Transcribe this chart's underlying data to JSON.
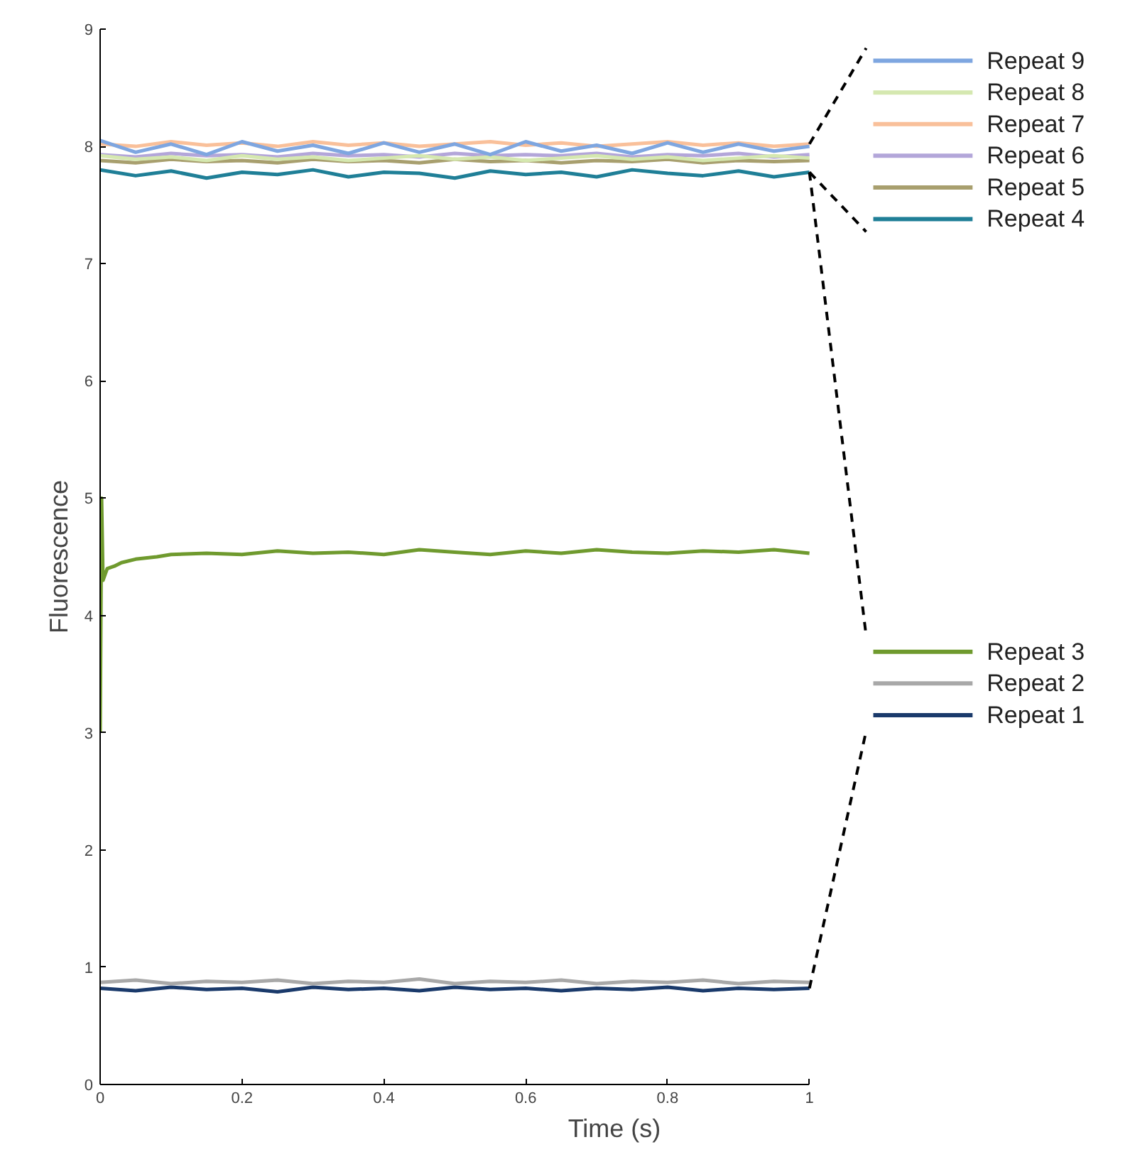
{
  "chart_data": {
    "type": "line",
    "xlabel": "Time (s)",
    "ylabel": "Fluorescence",
    "x": [
      0,
      0.05,
      0.1,
      0.15,
      0.2,
      0.25,
      0.3,
      0.35,
      0.4,
      0.45,
      0.5,
      0.55,
      0.6,
      0.65,
      0.7,
      0.75,
      0.8,
      0.85,
      0.9,
      0.95,
      1
    ],
    "series": [
      {
        "name": "Repeat 1",
        "color": "#1a3a6b",
        "values": [
          0.82,
          0.8,
          0.83,
          0.81,
          0.82,
          0.79,
          0.83,
          0.81,
          0.82,
          0.8,
          0.83,
          0.81,
          0.82,
          0.8,
          0.82,
          0.81,
          0.83,
          0.8,
          0.82,
          0.81,
          0.82
        ]
      },
      {
        "name": "Repeat 2",
        "color": "#a8a8a8",
        "values": [
          0.87,
          0.89,
          0.86,
          0.88,
          0.87,
          0.89,
          0.86,
          0.88,
          0.87,
          0.9,
          0.86,
          0.88,
          0.87,
          0.89,
          0.86,
          0.88,
          0.87,
          0.89,
          0.86,
          0.88,
          0.87
        ]
      },
      {
        "name": "Repeat 3",
        "color": "#6f9a2e",
        "x": [
          0,
          0.002,
          0.004,
          0.01,
          0.02,
          0.03,
          0.05,
          0.08,
          0.1,
          0.15,
          0.2,
          0.25,
          0.3,
          0.35,
          0.4,
          0.45,
          0.5,
          0.55,
          0.6,
          0.65,
          0.7,
          0.75,
          0.8,
          0.85,
          0.9,
          0.95,
          1
        ],
        "values": [
          3.0,
          5.0,
          4.3,
          4.4,
          4.42,
          4.45,
          4.48,
          4.5,
          4.52,
          4.53,
          4.52,
          4.55,
          4.53,
          4.54,
          4.52,
          4.56,
          4.54,
          4.52,
          4.55,
          4.53,
          4.56,
          4.54,
          4.53,
          4.55,
          4.54,
          4.56,
          4.53
        ]
      },
      {
        "name": "Repeat 4",
        "color": "#1f7f97",
        "values": [
          7.8,
          7.75,
          7.79,
          7.73,
          7.78,
          7.76,
          7.8,
          7.74,
          7.78,
          7.77,
          7.73,
          7.79,
          7.76,
          7.78,
          7.74,
          7.8,
          7.77,
          7.75,
          7.79,
          7.74,
          7.78
        ]
      },
      {
        "name": "Repeat 5",
        "color": "#a89f6e",
        "values": [
          7.88,
          7.86,
          7.89,
          7.87,
          7.88,
          7.86,
          7.89,
          7.87,
          7.88,
          7.86,
          7.89,
          7.87,
          7.88,
          7.86,
          7.88,
          7.87,
          7.89,
          7.86,
          7.88,
          7.87,
          7.88
        ]
      },
      {
        "name": "Repeat 6",
        "color": "#b3a6d9",
        "values": [
          7.93,
          7.91,
          7.94,
          7.92,
          7.93,
          7.91,
          7.94,
          7.92,
          7.93,
          7.91,
          7.94,
          7.92,
          7.93,
          7.92,
          7.94,
          7.91,
          7.93,
          7.92,
          7.94,
          7.91,
          7.93
        ]
      },
      {
        "name": "Repeat 7",
        "color": "#f9c09a",
        "values": [
          8.02,
          8.0,
          8.04,
          8.01,
          8.03,
          8.0,
          8.04,
          8.01,
          8.03,
          8.0,
          8.02,
          8.04,
          8.01,
          8.03,
          8.0,
          8.02,
          8.04,
          8.01,
          8.03,
          8.0,
          8.02
        ]
      },
      {
        "name": "Repeat 8",
        "color": "#d5e8b0",
        "values": [
          7.92,
          7.89,
          7.91,
          7.88,
          7.92,
          7.89,
          7.91,
          7.88,
          7.9,
          7.92,
          7.89,
          7.91,
          7.88,
          7.9,
          7.92,
          7.89,
          7.91,
          7.88,
          7.9,
          7.92,
          7.9
        ]
      },
      {
        "name": "Repeat 9",
        "color": "#7ea6e0",
        "values": [
          8.05,
          7.95,
          8.02,
          7.93,
          8.04,
          7.96,
          8.01,
          7.94,
          8.03,
          7.95,
          8.02,
          7.93,
          8.04,
          7.96,
          8.01,
          7.94,
          8.03,
          7.95,
          8.02,
          7.96,
          8.0
        ]
      }
    ],
    "xlim": [
      0,
      1
    ],
    "ylim": [
      0,
      9
    ],
    "xticks": [
      0,
      0.2,
      0.4,
      0.6,
      0.8,
      1
    ],
    "yticks": [
      0,
      1,
      2,
      3,
      4,
      5,
      6,
      7,
      8,
      9
    ],
    "grid": false,
    "legend": "right",
    "marker": "none",
    "line_style": "solid"
  }
}
